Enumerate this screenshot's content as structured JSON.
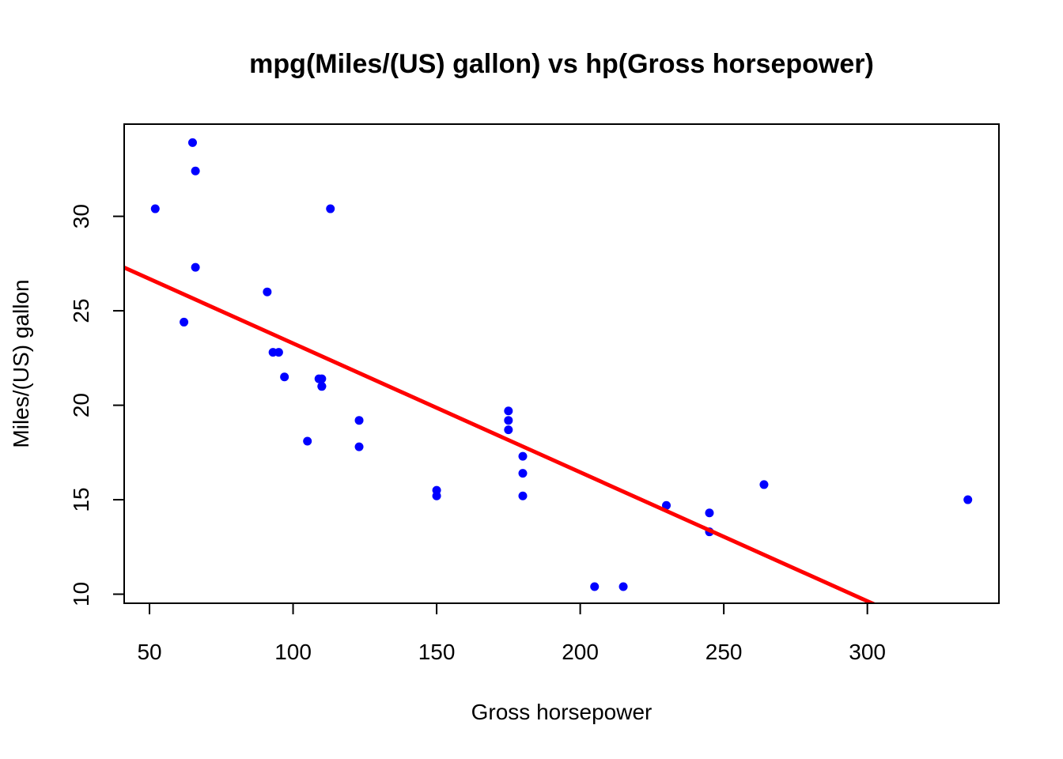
{
  "chart_data": {
    "type": "scatter",
    "title": "mpg(Miles/(US) gallon) vs hp(Gross horsepower)",
    "xlabel": "Gross horsepower",
    "ylabel": "Miles/(US) gallon",
    "xlim": [
      41.18,
      345.82
    ],
    "ylim": [
      9.52,
      34.88
    ],
    "xticks": [
      50,
      100,
      150,
      200,
      250,
      300
    ],
    "yticks": [
      10,
      15,
      20,
      25,
      30
    ],
    "grid": false,
    "point_color": "#0000FF",
    "line_color": "#FF0000",
    "series": [
      {
        "values": [
          {
            "x": 110,
            "y": 21.0
          },
          {
            "x": 110,
            "y": 21.0
          },
          {
            "x": 93,
            "y": 22.8
          },
          {
            "x": 110,
            "y": 21.4
          },
          {
            "x": 175,
            "y": 18.7
          },
          {
            "x": 105,
            "y": 18.1
          },
          {
            "x": 245,
            "y": 14.3
          },
          {
            "x": 62,
            "y": 24.4
          },
          {
            "x": 95,
            "y": 22.8
          },
          {
            "x": 123,
            "y": 19.2
          },
          {
            "x": 123,
            "y": 17.8
          },
          {
            "x": 180,
            "y": 16.4
          },
          {
            "x": 180,
            "y": 17.3
          },
          {
            "x": 180,
            "y": 15.2
          },
          {
            "x": 205,
            "y": 10.4
          },
          {
            "x": 215,
            "y": 10.4
          },
          {
            "x": 230,
            "y": 14.7
          },
          {
            "x": 66,
            "y": 32.4
          },
          {
            "x": 52,
            "y": 30.4
          },
          {
            "x": 65,
            "y": 33.9
          },
          {
            "x": 97,
            "y": 21.5
          },
          {
            "x": 150,
            "y": 15.5
          },
          {
            "x": 150,
            "y": 15.2
          },
          {
            "x": 245,
            "y": 13.3
          },
          {
            "x": 175,
            "y": 19.2
          },
          {
            "x": 66,
            "y": 27.3
          },
          {
            "x": 91,
            "y": 26.0
          },
          {
            "x": 113,
            "y": 30.4
          },
          {
            "x": 264,
            "y": 15.8
          },
          {
            "x": 175,
            "y": 19.7
          },
          {
            "x": 335,
            "y": 15.0
          },
          {
            "x": 109,
            "y": 21.4
          }
        ]
      }
    ],
    "regression_line": {
      "intercept": 30.09886,
      "slope": -0.06823
    }
  }
}
